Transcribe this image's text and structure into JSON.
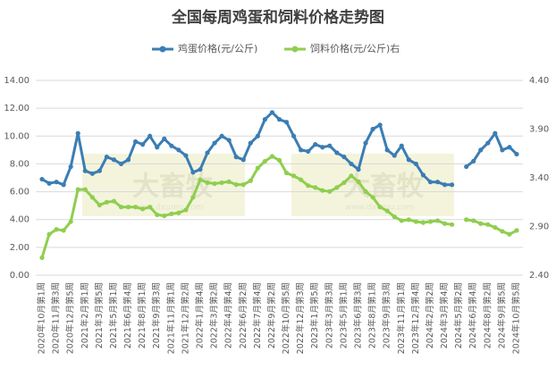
{
  "chart_data": {
    "type": "line",
    "title": "全国每周鸡蛋和饲料价格走势图",
    "watermark": "大畜牧",
    "watermark_url": "www.dxumu.com",
    "categories": [
      "2020年10月第1周",
      null,
      "2020年11月第3周",
      null,
      "2020年12月第5周",
      null,
      "2021年2月第1周",
      null,
      "2021年3月第5周",
      null,
      "2021年5月第1周",
      null,
      "2021年6月第4周",
      null,
      "2021年8月第1周",
      null,
      "2021年9月第3周",
      null,
      "2021年11月第1周",
      null,
      "2021年12月第2周",
      null,
      "2022年1月第4周",
      null,
      "2022年3月第2周",
      null,
      "2022年4月第4周",
      null,
      "2022年6月第2周",
      null,
      "2022年7月第4周",
      null,
      "2022年9月第2周",
      null,
      "2022年10月第5周",
      null,
      "2022年12月第3周",
      null,
      "2023年1月第5周",
      null,
      "2023年3月第3周",
      null,
      "2023年5月第1周",
      null,
      "2023年6月第3周",
      null,
      "2023年8月第1周",
      null,
      "2023年9月第3周",
      null,
      "2023年11月第1周",
      null,
      "2023年12月第4周",
      null,
      "2024年2月第2周",
      null,
      "2024年3月第4周",
      null,
      "2024年5月第2周",
      null,
      "2024年6月第4周",
      null,
      "2024年8月第2周",
      null,
      "2024年9月第5周",
      null,
      "2024年10月第5周"
    ],
    "series": [
      {
        "name": "鸡蛋价格(元/公斤)",
        "color": "#3b7db3",
        "axis": "y",
        "values": [
          6.9,
          6.6,
          6.7,
          6.5,
          7.8,
          10.2,
          7.5,
          7.3,
          7.5,
          8.5,
          8.3,
          8.0,
          8.3,
          9.6,
          9.4,
          10.0,
          9.2,
          9.8,
          9.3,
          9.0,
          8.6,
          7.4,
          7.6,
          8.8,
          9.5,
          10.0,
          9.7,
          8.5,
          8.3,
          9.5,
          10.0,
          11.2,
          11.7,
          11.2,
          11.0,
          10.0,
          9.0,
          8.9,
          9.4,
          9.2,
          9.3,
          8.8,
          8.5,
          8.0,
          7.6,
          9.5,
          10.5,
          10.8,
          9.0,
          8.6,
          9.3,
          8.3,
          8.0,
          7.2,
          6.7,
          6.7,
          6.5,
          6.5,
          null,
          7.8,
          8.2,
          9.0,
          9.5,
          10.2,
          9.0,
          9.2,
          8.7
        ]
      },
      {
        "name": "饲料价格(元/公斤)右",
        "color": "#8fce4f",
        "axis": "y2",
        "values": [
          2.58,
          2.82,
          2.87,
          2.86,
          2.95,
          3.28,
          3.28,
          3.2,
          3.12,
          3.15,
          3.16,
          3.1,
          3.1,
          3.1,
          3.08,
          3.1,
          3.02,
          3.01,
          3.03,
          3.04,
          3.07,
          3.2,
          3.38,
          3.35,
          3.34,
          3.35,
          3.36,
          3.33,
          3.33,
          3.37,
          3.5,
          3.57,
          3.62,
          3.58,
          3.45,
          3.42,
          3.38,
          3.32,
          3.3,
          3.27,
          3.26,
          3.3,
          3.35,
          3.42,
          3.36,
          3.26,
          3.2,
          3.1,
          3.06,
          3.0,
          2.96,
          2.97,
          2.95,
          2.94,
          2.95,
          2.96,
          2.93,
          2.92,
          null,
          2.97,
          2.96,
          2.93,
          2.92,
          2.89,
          2.85,
          2.82,
          2.86
        ]
      }
    ],
    "ylim": [
      0,
      14
    ],
    "yticks": [
      {
        "value": 0,
        "label": "0.00"
      },
      {
        "value": 2,
        "label": "2.00"
      },
      {
        "value": 4,
        "label": "4.00"
      },
      {
        "value": 6,
        "label": "6.00"
      },
      {
        "value": 8,
        "label": "8.00"
      },
      {
        "value": 10,
        "label": "10.00"
      },
      {
        "value": 12,
        "label": "12.00"
      },
      {
        "value": 14,
        "label": "14.00"
      }
    ],
    "y2lim": [
      2.4,
      4.4
    ],
    "y2ticks": [
      {
        "value": 2.4,
        "label": "2.40"
      },
      {
        "value": 2.9,
        "label": "2.90"
      },
      {
        "value": 3.4,
        "label": "3.40"
      },
      {
        "value": 3.9,
        "label": "3.90"
      },
      {
        "value": 4.4,
        "label": "4.40"
      }
    ],
    "grid": true
  }
}
